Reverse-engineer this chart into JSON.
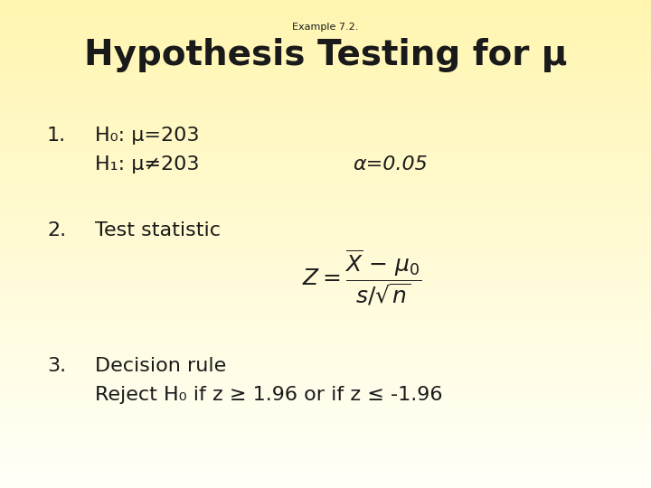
{
  "bg_color_top": "#FFF5B0",
  "bg_color_bottom": "#FFFFF8",
  "example_text": "Example 7.2.",
  "title_text": "Hypothesis Testing for μ",
  "h0_line": "H₀: μ=203",
  "h1_line": "H₁: μ≠203",
  "alpha_text": "α=0.05",
  "item2_num": "2.",
  "test_stat_text": "Test statistic",
  "item3_num": "3.",
  "decision_text": "Decision rule",
  "reject_text": "Reject H₀ if z ≥ 1.96 or if z ≤ -1.96",
  "text_color": "#1a1a1a",
  "example_fontsize": 8,
  "title_fontsize": 28,
  "body_fontsize": 16,
  "formula_fontsize": 18
}
